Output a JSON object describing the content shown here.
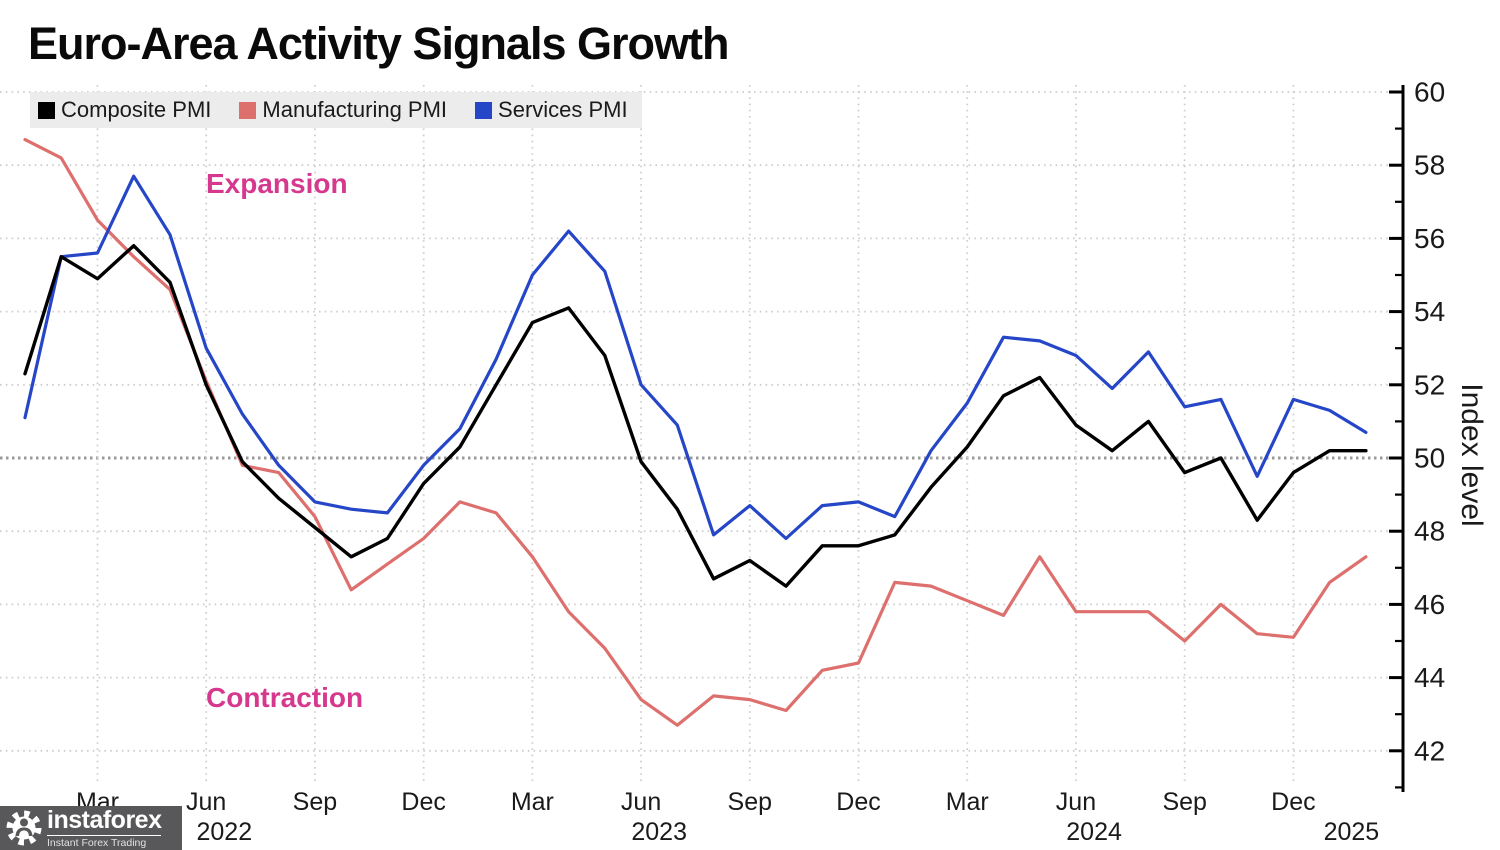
{
  "title": "Euro-Area Activity Signals Growth",
  "legend": [
    {
      "label": "Composite PMI",
      "color": "#000000"
    },
    {
      "label": "Manufacturing PMI",
      "color": "#dd6f6d"
    },
    {
      "label": "Services PMI",
      "color": "#2646c8"
    }
  ],
  "annotations": {
    "expansion": "Expansion",
    "contraction": "Contraction",
    "color": "#d6388e"
  },
  "y_axis": {
    "label": "Index level",
    "major_ticks": [
      42,
      44,
      46,
      48,
      50,
      52,
      54,
      56,
      58,
      60
    ],
    "minor_ticks": [
      41,
      43,
      45,
      47,
      49,
      51,
      53,
      55,
      57,
      59
    ],
    "baseline_value": 50
  },
  "x_axis": {
    "quarter_labels": [
      {
        "label": "Mar",
        "month_index": 2
      },
      {
        "label": "Jun",
        "month_index": 5
      },
      {
        "label": "Sep",
        "month_index": 8
      },
      {
        "label": "Dec",
        "month_index": 11
      },
      {
        "label": "Mar",
        "month_index": 14
      },
      {
        "label": "Jun",
        "month_index": 17
      },
      {
        "label": "Sep",
        "month_index": 20
      },
      {
        "label": "Dec",
        "month_index": 23
      },
      {
        "label": "Mar",
        "month_index": 26
      },
      {
        "label": "Jun",
        "month_index": 29
      },
      {
        "label": "Sep",
        "month_index": 32
      },
      {
        "label": "Dec",
        "month_index": 35
      }
    ],
    "year_labels": [
      {
        "label": "2022",
        "month_index": 5.5
      },
      {
        "label": "2023",
        "month_index": 17.5
      },
      {
        "label": "2024",
        "month_index": 29.5
      },
      {
        "label": "2025",
        "month_index": 36.6
      }
    ]
  },
  "watermark": {
    "brand": "instaforex",
    "tagline": "Instant Forex Trading"
  },
  "chart_data": {
    "type": "line",
    "frequency": "monthly",
    "x": [
      "2022-01",
      "2022-02",
      "2022-03",
      "2022-04",
      "2022-05",
      "2022-06",
      "2022-07",
      "2022-08",
      "2022-09",
      "2022-10",
      "2022-11",
      "2022-12",
      "2023-01",
      "2023-02",
      "2023-03",
      "2023-04",
      "2023-05",
      "2023-06",
      "2023-07",
      "2023-08",
      "2023-09",
      "2023-10",
      "2023-11",
      "2023-12",
      "2024-01",
      "2024-02",
      "2024-03",
      "2024-04",
      "2024-05",
      "2024-06",
      "2024-07",
      "2024-08",
      "2024-09",
      "2024-10",
      "2024-11",
      "2024-12",
      "2025-01",
      "2025-02"
    ],
    "series": [
      {
        "name": "Composite PMI",
        "color": "#000000",
        "values": [
          52.3,
          55.5,
          54.9,
          55.8,
          54.8,
          52.0,
          49.9,
          48.9,
          48.1,
          47.3,
          47.8,
          49.3,
          50.3,
          52.0,
          53.7,
          54.1,
          52.8,
          49.9,
          48.6,
          46.7,
          47.2,
          46.5,
          47.6,
          47.6,
          47.9,
          49.2,
          50.3,
          51.7,
          52.2,
          50.9,
          50.2,
          51.0,
          49.6,
          50.0,
          48.3,
          49.6,
          50.2,
          50.2
        ]
      },
      {
        "name": "Manufacturing PMI",
        "color": "#dd6f6d",
        "values": [
          58.7,
          58.2,
          56.5,
          55.5,
          54.6,
          52.1,
          49.8,
          49.6,
          48.4,
          46.4,
          47.1,
          47.8,
          48.8,
          48.5,
          47.3,
          45.8,
          44.8,
          43.4,
          42.7,
          43.5,
          43.4,
          43.1,
          44.2,
          44.4,
          46.6,
          46.5,
          46.1,
          45.7,
          47.3,
          45.8,
          45.8,
          45.8,
          45.0,
          46.0,
          45.2,
          45.1,
          46.6,
          47.3
        ]
      },
      {
        "name": "Services PMI",
        "color": "#2646c8",
        "values": [
          51.1,
          55.5,
          55.6,
          57.7,
          56.1,
          53.0,
          51.2,
          49.8,
          48.8,
          48.6,
          48.5,
          49.8,
          50.8,
          52.7,
          55.0,
          56.2,
          55.1,
          52.0,
          50.9,
          47.9,
          48.7,
          47.8,
          48.7,
          48.8,
          48.4,
          50.2,
          51.5,
          53.3,
          53.2,
          52.8,
          51.9,
          52.9,
          51.4,
          51.6,
          49.5,
          51.6,
          51.3,
          50.7
        ]
      }
    ],
    "title": "Euro-Area Activity Signals Growth",
    "xlabel": "",
    "ylabel": "Index level",
    "ylim": [
      41,
      60.5
    ],
    "grid": true,
    "baseline": 50,
    "legend_position": "top-left"
  }
}
